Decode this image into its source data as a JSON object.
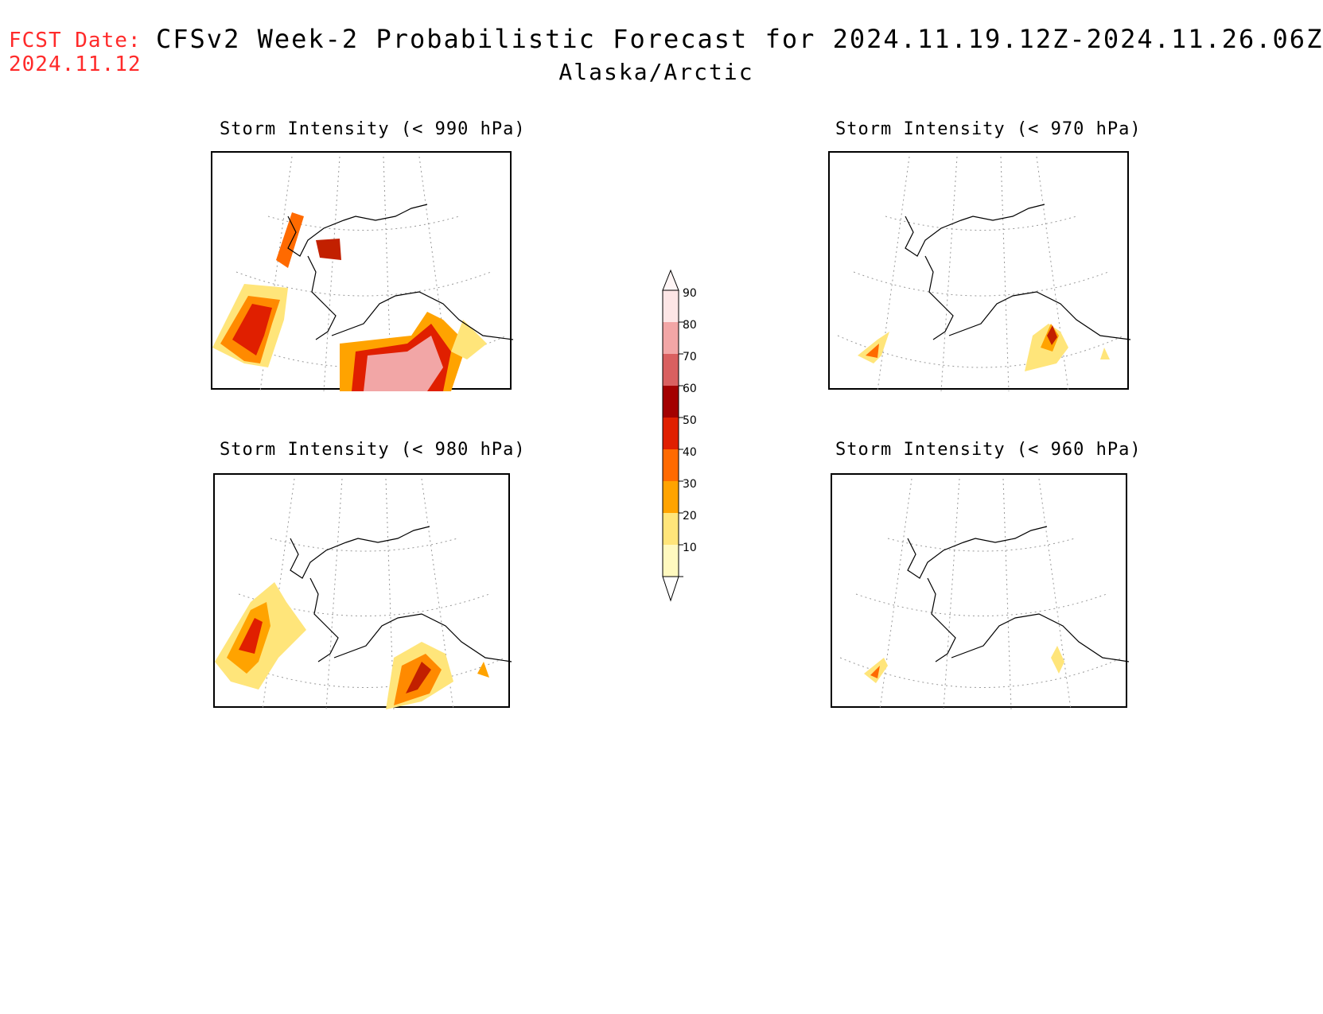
{
  "header": {
    "fcst_label": "FCST Date:",
    "fcst_date": "2024.11.12",
    "title": "CFSv2 Week-2 Probabilistic Forecast for 2024.11.19.12Z-2024.11.26.06Z",
    "subtitle": "Alaska/Arctic"
  },
  "panels": [
    {
      "id": "p990",
      "title": "Storm Intensity (< 990 hPa)"
    },
    {
      "id": "p970",
      "title": "Storm Intensity (< 970 hPa)"
    },
    {
      "id": "p980",
      "title": "Storm Intensity (< 980 hPa)"
    },
    {
      "id": "p960",
      "title": "Storm Intensity (< 960 hPa)"
    }
  ],
  "colorbar": {
    "levels": [
      "10",
      "20",
      "30",
      "40",
      "50",
      "60",
      "70",
      "80",
      "90"
    ],
    "colors": [
      "#fff9bf",
      "#ffe57a",
      "#ffa300",
      "#ff6a00",
      "#e01f00",
      "#a30000",
      "#d96060",
      "#f2a6a6",
      "#fde6e6"
    ]
  }
}
